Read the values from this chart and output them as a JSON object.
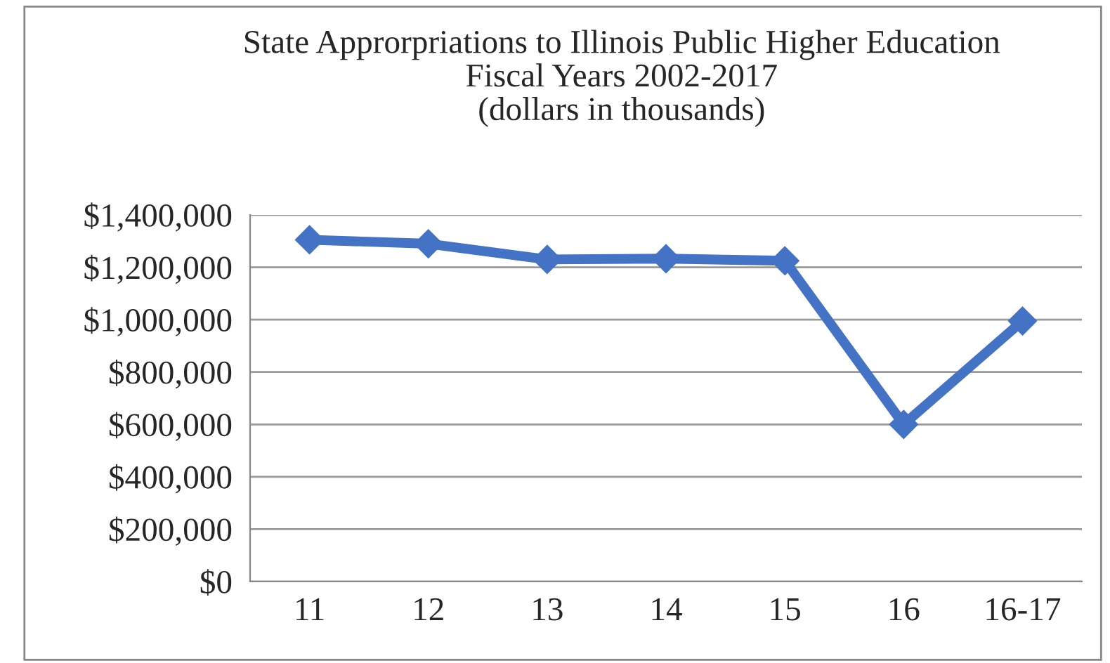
{
  "chart_data": {
    "type": "line",
    "title": "State Approrpriations to Illinois Public Higher Education\nFiscal Years 2002-2017\n(dollars in thousands)",
    "categories": [
      "11",
      "12",
      "13",
      "14",
      "15",
      "16",
      "16-17"
    ],
    "series": [
      {
        "color": "#4472c4",
        "values": [
          1305000,
          1290000,
          1230000,
          1233000,
          1225000,
          600000,
          995000
        ]
      }
    ],
    "ylim": [
      0,
      1400000
    ],
    "yticks": [
      {
        "value": 0,
        "label": "$0"
      },
      {
        "value": 200000,
        "label": "$200,000"
      },
      {
        "value": 400000,
        "label": "$400,000"
      },
      {
        "value": 600000,
        "label": "$600,000"
      },
      {
        "value": 800000,
        "label": "$800,000"
      },
      {
        "value": 1000000,
        "label": "$1,000,000"
      },
      {
        "value": 1200000,
        "label": "$1,200,000"
      },
      {
        "value": 1400000,
        "label": "$1,400,000"
      }
    ],
    "grid": "y",
    "marker": "diamond",
    "line_style": "solid"
  }
}
